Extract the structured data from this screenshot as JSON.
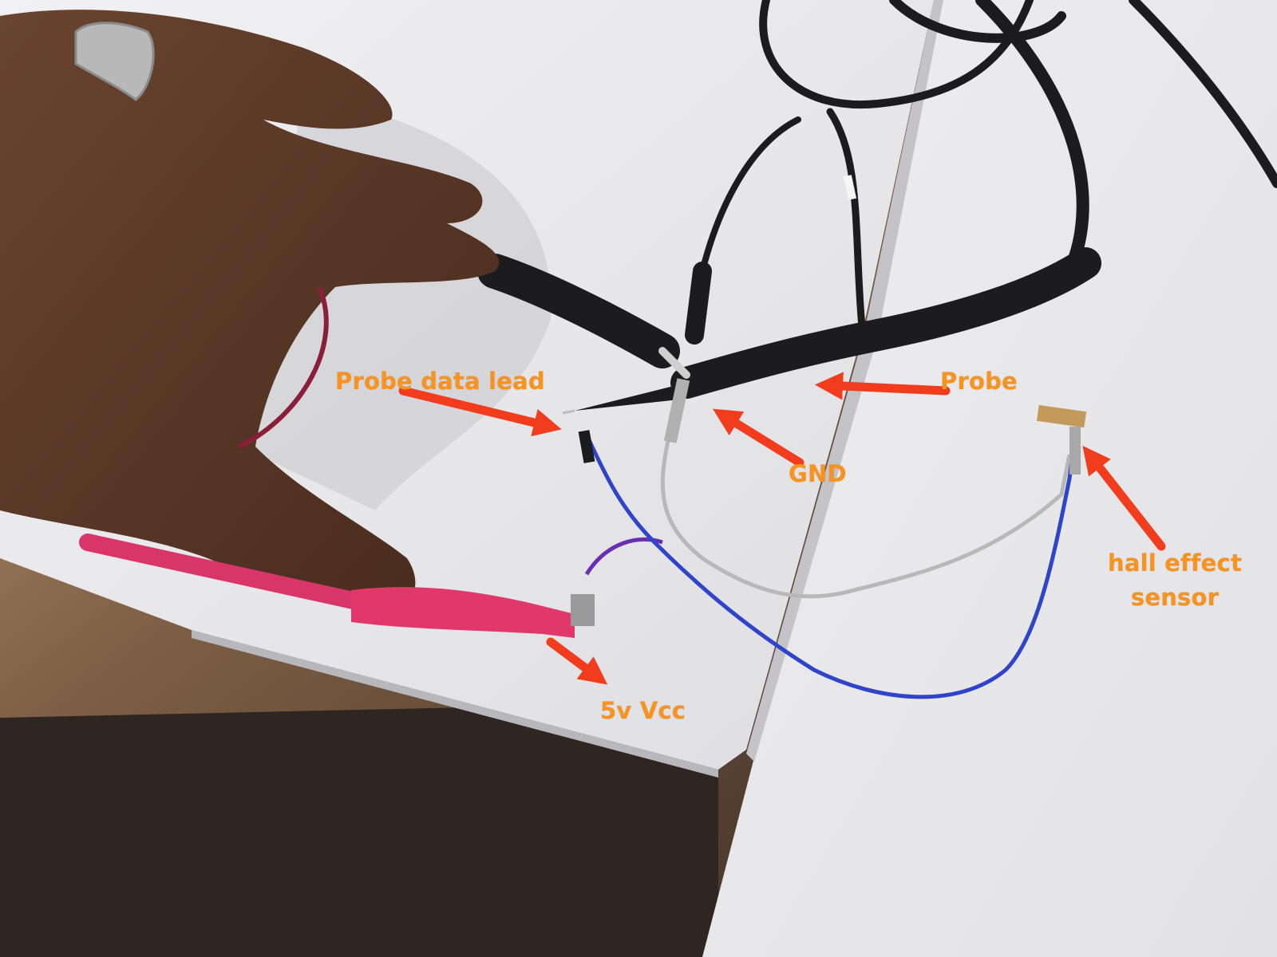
{
  "annotations": {
    "probe_data_lead": "Probe data lead",
    "probe": "Probe",
    "gnd": "GND",
    "hall_effect_sensor_line1": "hall effect",
    "hall_effect_sensor_line2": "sensor",
    "vcc": "5v Vcc"
  },
  "colors": {
    "label_text": "#f7931e",
    "arrow": "#f23c1e",
    "white_table": "#e8e8ea",
    "floor": "#2a211c",
    "probe_black": "#1c1c1e",
    "pink_lead": "#d8366a",
    "blue_wire": "#2f44c8",
    "skin": "#5a3826"
  }
}
